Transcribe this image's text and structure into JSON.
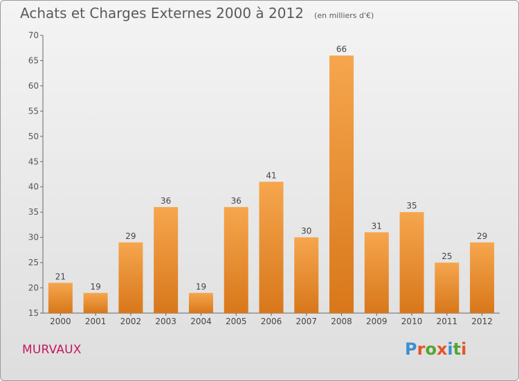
{
  "chart_data": {
    "type": "bar",
    "title": "Achats et Charges Externes 2000 à 2012",
    "subtitle": "(en milliers d'€)",
    "categories": [
      "2000",
      "2001",
      "2002",
      "2003",
      "2004",
      "2005",
      "2006",
      "2007",
      "2008",
      "2009",
      "2010",
      "2011",
      "2012"
    ],
    "values": [
      21,
      19,
      29,
      36,
      19,
      36,
      41,
      30,
      66,
      31,
      35,
      25,
      29
    ],
    "ylim": [
      15,
      70
    ],
    "yticks": [
      15,
      20,
      25,
      30,
      35,
      40,
      45,
      50,
      55,
      60,
      65,
      70
    ],
    "xlabel": "",
    "ylabel": "",
    "grid": false,
    "bar_color": "#f0923a",
    "data_labels": true
  },
  "footer": {
    "commune": "MURVAUX",
    "logo_letters": [
      "P",
      "r",
      "o",
      "x",
      "i",
      "t",
      "i"
    ],
    "logo_colors": [
      "#3b8fd1",
      "#e5542a",
      "#55a532",
      "#e5542a",
      "#3b8fd1",
      "#55a532",
      "#e5542a"
    ]
  }
}
